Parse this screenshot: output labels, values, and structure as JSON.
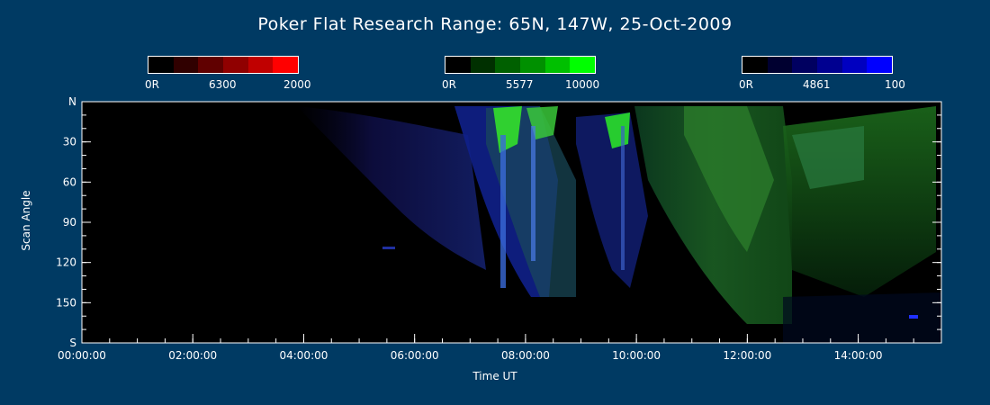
{
  "chart_data": {
    "type": "heatmap",
    "title": "Poker Flat Research Range: 65N, 147W, 25-Oct-2009",
    "xlabel": "Time UT",
    "ylabel": "Scan Angle",
    "x_ticks": [
      "00:00:00",
      "02:00:00",
      "04:00:00",
      "06:00:00",
      "08:00:00",
      "10:00:00",
      "12:00:00",
      "14:00:00"
    ],
    "x_range_hours": [
      0,
      15.5
    ],
    "y_ticks": [
      "N",
      "30",
      "60",
      "90",
      "120",
      "150",
      "S"
    ],
    "y_tick_values": [
      0,
      30,
      60,
      90,
      120,
      150,
      180
    ],
    "colorbars": [
      {
        "name": "6300",
        "min_label": "0R",
        "max_label": "2000",
        "colors": [
          "#000000",
          "#300000",
          "#600000",
          "#900000",
          "#c00000",
          "#ff0000"
        ]
      },
      {
        "name": "5577",
        "min_label": "0R",
        "max_label": "10000",
        "colors": [
          "#000000",
          "#003000",
          "#006000",
          "#009000",
          "#00c000",
          "#00ff00"
        ]
      },
      {
        "name": "4861",
        "min_label": "0R",
        "max_label": "100",
        "colors": [
          "#000000",
          "#000030",
          "#000060",
          "#000090",
          "#0000c0",
          "#0000ff"
        ]
      }
    ],
    "colors": {
      "background": "#003a63",
      "axes": "#ffffff"
    }
  }
}
